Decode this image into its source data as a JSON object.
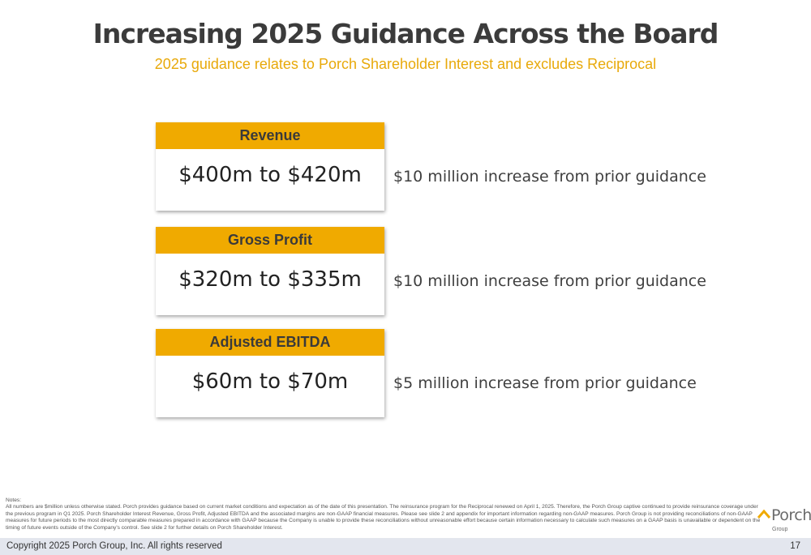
{
  "header": {
    "title": "Increasing 2025 Guidance Across the Board",
    "subtitle": "2025 guidance relates to Porch Shareholder Interest and excludes Reciprocal"
  },
  "metrics": [
    {
      "label": "Revenue",
      "value": "$400m to $420m",
      "note": "$10 million increase from prior guidance"
    },
    {
      "label": "Gross Profit",
      "value": "$320m to $335m",
      "note": "$10 million increase from prior guidance"
    },
    {
      "label": "Adjusted EBITDA",
      "value": "$60m to $70m",
      "note": "$5 million increase from prior guidance"
    }
  ],
  "notes": {
    "heading": "Notes:",
    "body": "All numbers are $million unless otherwise stated. Porch provides guidance based on current market conditions and expectation as of the date of this presentation. The reinsurance program for the Reciprocal renewed on April 1, 2025. Therefore, the Porch Group captive continued to provide reinsurance coverage under the previous program in Q1 2025. Porch Shareholder Interest Revenue, Gross Profit, Adjusted EBITDA and the associated margins are non-GAAP financial measures. Please see slide 2 and appendix for important information regarding non-GAAP measures. Porch Group is not providing reconciliations of non-GAAP measures for future periods to the most directly comparable measures prepared in accordance with GAAP because the Company is unable to provide these reconciliations without unreasonable effort because certain information necessary to calculate such measures on a GAAP basis is unavailable or dependent on the timing of future events outside of the Company's control. See slide 2 for further details on Porch Shareholder Interest."
  },
  "logo": {
    "name": "Porch",
    "sub": "Group",
    "icon": "porch-roof-icon",
    "colors": {
      "roof": "#f0aa00",
      "text": "#6b6b6b"
    }
  },
  "footer": {
    "copyright": "Copyright 2025 Porch Group, Inc. All rights reserved",
    "page": "17"
  },
  "colors": {
    "accent": "#f0aa00",
    "subtitle": "#e8a90a",
    "footer_bg": "#e3e6ee"
  }
}
